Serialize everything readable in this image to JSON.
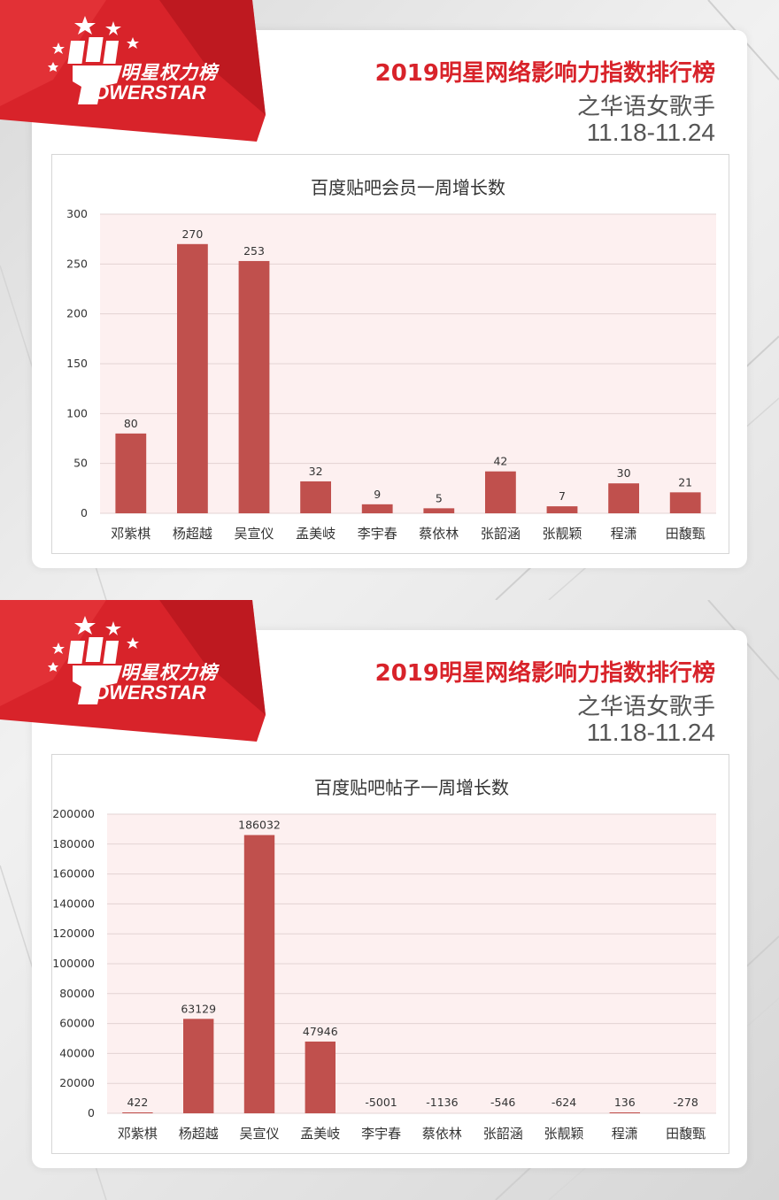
{
  "header": {
    "logo_cn": "明星权力榜",
    "logo_en": "OWERSTAR",
    "title": "2019明星网络影响力指数排行榜",
    "subtitle": "之华语女歌手",
    "date_range": "11.18-11.24"
  },
  "colors": {
    "bar": "#c0504d",
    "plot_bg": "#fdf0f0",
    "grid": "#e3d3d3",
    "banner_red": "#d8232a",
    "title_red": "#d8232a"
  },
  "chart_data": [
    {
      "type": "bar",
      "title": "百度贴吧会员一周增长数",
      "categories": [
        "邓紫棋",
        "杨超越",
        "吴宣仪",
        "孟美岐",
        "李宇春",
        "蔡依林",
        "张韶涵",
        "张靓颖",
        "程潇",
        "田馥甄"
      ],
      "values": [
        80,
        270,
        253,
        32,
        9,
        5,
        42,
        7,
        30,
        21
      ],
      "ylim": [
        0,
        300
      ],
      "yticks": [
        0,
        50,
        100,
        150,
        200,
        250,
        300
      ],
      "grid": true,
      "legend": "none"
    },
    {
      "type": "bar",
      "title": "百度贴吧帖子一周增长数",
      "categories": [
        "邓紫棋",
        "杨超越",
        "吴宣仪",
        "孟美岐",
        "李宇春",
        "蔡依林",
        "张韶涵",
        "张靓颖",
        "程潇",
        "田馥甄"
      ],
      "values": [
        422,
        63129,
        186032,
        47946,
        -5001,
        -1136,
        -546,
        -624,
        136,
        -278
      ],
      "ylim": [
        0,
        200000
      ],
      "yticks": [
        0,
        20000,
        40000,
        60000,
        80000,
        100000,
        120000,
        140000,
        160000,
        180000,
        200000
      ],
      "grid": true,
      "legend": "none"
    }
  ]
}
